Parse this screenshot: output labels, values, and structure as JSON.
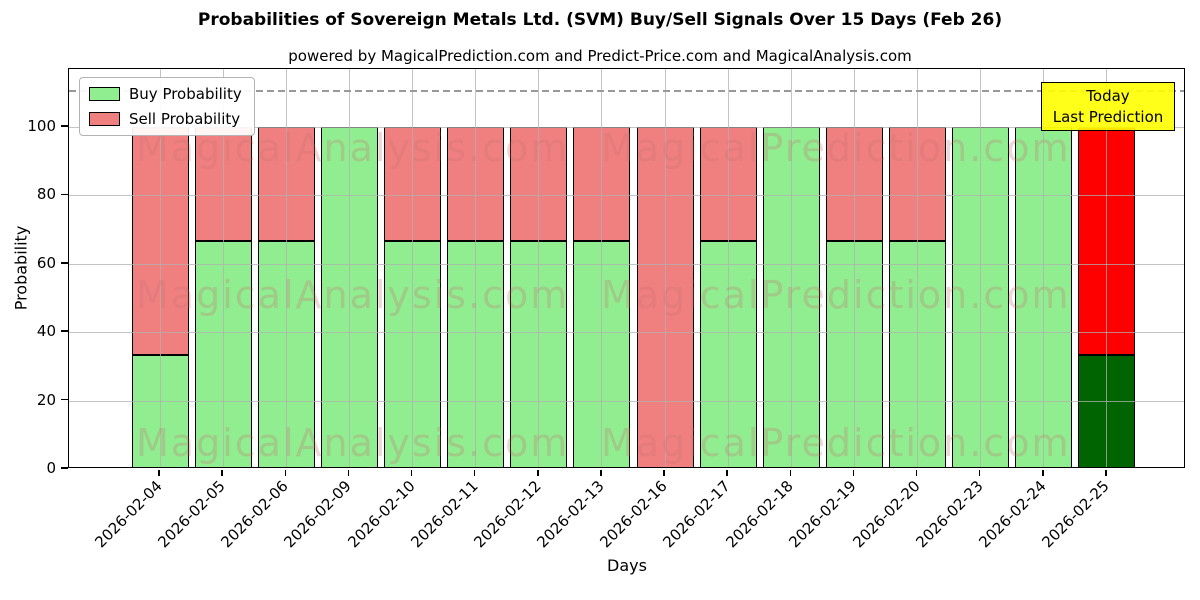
{
  "chart_data": {
    "type": "bar",
    "stacked": true,
    "title": "Probabilities of Sovereign Metals Ltd. (SVM) Buy/Sell Signals Over 15 Days (Feb 26)",
    "subtitle": "powered by MagicalPrediction.com and Predict-Price.com and MagicalAnalysis.com",
    "xlabel": "Days",
    "ylabel": "Probability",
    "ylim": [
      0,
      117
    ],
    "yticks": [
      0,
      20,
      40,
      60,
      80,
      100
    ],
    "grid": true,
    "dashed_hline": 111,
    "legend_position": "upper left",
    "categories": [
      "2026-02-04",
      "2026-02-05",
      "2026-02-06",
      "2026-02-09",
      "2026-02-10",
      "2026-02-11",
      "2026-02-12",
      "2026-02-13",
      "2026-02-16",
      "2026-02-17",
      "2026-02-18",
      "2026-02-19",
      "2026-02-20",
      "2026-02-23",
      "2026-02-24",
      "2026-02-25"
    ],
    "series": [
      {
        "name": "Buy Probability",
        "values": [
          33.33,
          66.67,
          66.67,
          100,
          66.67,
          66.67,
          66.67,
          66.67,
          0,
          66.67,
          100,
          66.67,
          66.67,
          100,
          100,
          33.33
        ]
      },
      {
        "name": "Sell Probability",
        "values": [
          66.67,
          33.33,
          33.33,
          0,
          33.33,
          33.33,
          33.33,
          33.33,
          100,
          33.33,
          0,
          33.33,
          33.33,
          0,
          0,
          66.67
        ]
      }
    ],
    "legend": {
      "entries": [
        {
          "label": "Buy Probability",
          "color": "#90EE90"
        },
        {
          "label": "Sell Probability",
          "color": "#F08080"
        }
      ]
    },
    "colors": {
      "buy": "#90EE90",
      "sell": "#F08080",
      "edge": "#000000"
    },
    "today_bar": {
      "index": 15,
      "buy_color": "#006400",
      "sell_color": "#FF0000"
    },
    "annotation": {
      "lines": [
        "Today",
        "Last Prediction"
      ],
      "bg_color": "#FFFF00"
    }
  },
  "watermarks": {
    "left_text": "MagicalAnalysis.com",
    "right_text": "MagicalPrediction.com",
    "color": "rgba(200,110,110,0.28)"
  }
}
